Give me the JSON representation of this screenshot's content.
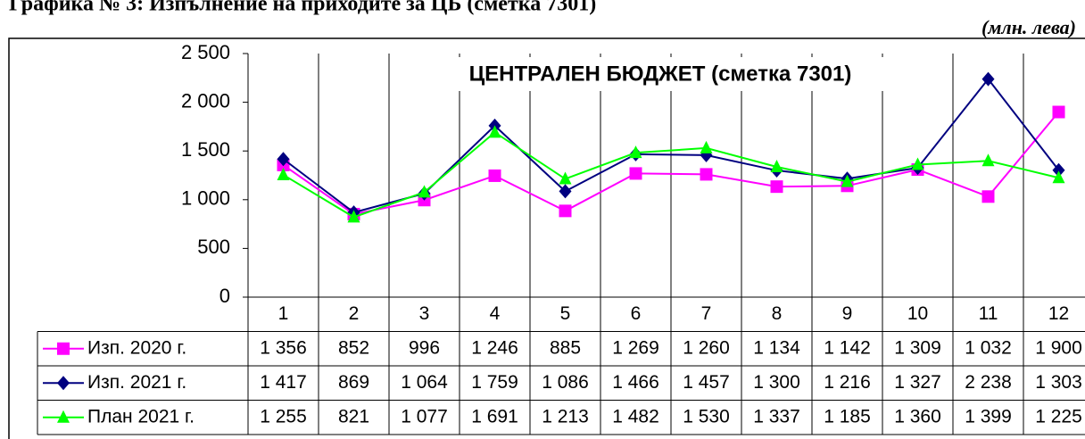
{
  "heading": "Графика № 3: Изпълнение на приходите за ЦБ (сметка 7301)",
  "unit": "(млн. лева)",
  "chart_data": {
    "type": "line",
    "title": "ЦЕНТРАЛЕН БЮДЖЕТ (сметка 7301)",
    "categories": [
      "1",
      "2",
      "3",
      "4",
      "5",
      "6",
      "7",
      "8",
      "9",
      "10",
      "11",
      "12"
    ],
    "ylim": [
      0,
      2500
    ],
    "yticks": [
      {
        "value": 0,
        "label": "0"
      },
      {
        "value": 500,
        "label": "500"
      },
      {
        "value": 1000,
        "label": "1 000"
      },
      {
        "value": 1500,
        "label": "1 500"
      },
      {
        "value": 2000,
        "label": "2 000"
      },
      {
        "value": 2500,
        "label": "2 500"
      }
    ],
    "series": [
      {
        "name": "Изп. 2020 г.",
        "color": "#ff00ff",
        "marker": "square",
        "values": [
          1356,
          852,
          996,
          1246,
          885,
          1269,
          1260,
          1134,
          1142,
          1309,
          1032,
          1900
        ],
        "value_labels": [
          "1 356",
          "852",
          "996",
          "1 246",
          "885",
          "1 269",
          "1 260",
          "1 134",
          "1 142",
          "1 309",
          "1 032",
          "1 900"
        ]
      },
      {
        "name": "Изп. 2021 г.",
        "color": "#000080",
        "marker": "diamond",
        "values": [
          1417,
          869,
          1064,
          1759,
          1086,
          1466,
          1457,
          1300,
          1216,
          1327,
          2238,
          1303
        ],
        "value_labels": [
          "1 417",
          "869",
          "1 064",
          "1 759",
          "1 086",
          "1 466",
          "1 457",
          "1 300",
          "1 216",
          "1 327",
          "2 238",
          "1 303"
        ]
      },
      {
        "name": "План 2021 г.",
        "color": "#00ff00",
        "marker": "triangle",
        "values": [
          1255,
          821,
          1077,
          1691,
          1213,
          1482,
          1530,
          1337,
          1185,
          1360,
          1399,
          1225
        ],
        "value_labels": [
          "1 255",
          "821",
          "1 077",
          "1 691",
          "1 213",
          "1 482",
          "1 530",
          "1 337",
          "1 185",
          "1 360",
          "1 399",
          "1 225"
        ]
      }
    ]
  }
}
